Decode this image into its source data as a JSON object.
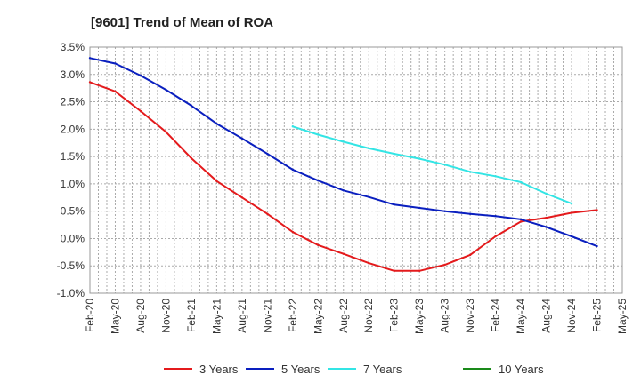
{
  "chart_data": {
    "type": "line",
    "title": "[9601]  Trend of Mean of ROA",
    "xlabel": "",
    "ylabel": "",
    "ylim": [
      -1.0,
      3.5
    ],
    "yticks": [
      -1.0,
      -0.5,
      0.0,
      0.5,
      1.0,
      1.5,
      2.0,
      2.5,
      3.0,
      3.5
    ],
    "ytick_labels": [
      "-1.0%",
      "-0.5%",
      "0.0%",
      "0.5%",
      "1.0%",
      "1.5%",
      "2.0%",
      "2.5%",
      "3.0%",
      "3.5%"
    ],
    "x_labels": [
      "Feb-20",
      "May-20",
      "Aug-20",
      "Nov-20",
      "Feb-21",
      "May-21",
      "Aug-21",
      "Nov-21",
      "Feb-22",
      "May-22",
      "Aug-22",
      "Nov-22",
      "Feb-23",
      "May-23",
      "Aug-23",
      "Nov-23",
      "Feb-24",
      "May-24",
      "Aug-24",
      "Nov-24",
      "Feb-25",
      "May-25"
    ],
    "grid": true,
    "legend_position": "bottom",
    "series": [
      {
        "name": "3 Years",
        "color": "#e41a1c",
        "start_index": 0,
        "values": [
          2.86,
          2.69,
          2.33,
          1.95,
          1.47,
          1.05,
          0.75,
          0.45,
          0.12,
          -0.12,
          -0.28,
          -0.45,
          -0.59,
          -0.59,
          -0.48,
          -0.3,
          0.04,
          0.31,
          0.38,
          0.47,
          0.52
        ]
      },
      {
        "name": "5 Years",
        "color": "#0a1fbf",
        "start_index": 0,
        "values": [
          3.3,
          3.2,
          2.98,
          2.72,
          2.43,
          2.1,
          1.83,
          1.55,
          1.26,
          1.06,
          0.88,
          0.76,
          0.62,
          0.56,
          0.5,
          0.45,
          0.41,
          0.35,
          0.21,
          0.04,
          -0.14
        ]
      },
      {
        "name": "7 Years",
        "color": "#33e5e5",
        "start_index": 8,
        "values": [
          2.05,
          1.9,
          1.77,
          1.65,
          1.55,
          1.46,
          1.35,
          1.22,
          1.14,
          1.03,
          0.82,
          0.64
        ]
      },
      {
        "name": "10 Years",
        "color": "#1a8a1a",
        "start_index": 0,
        "values": []
      }
    ]
  }
}
